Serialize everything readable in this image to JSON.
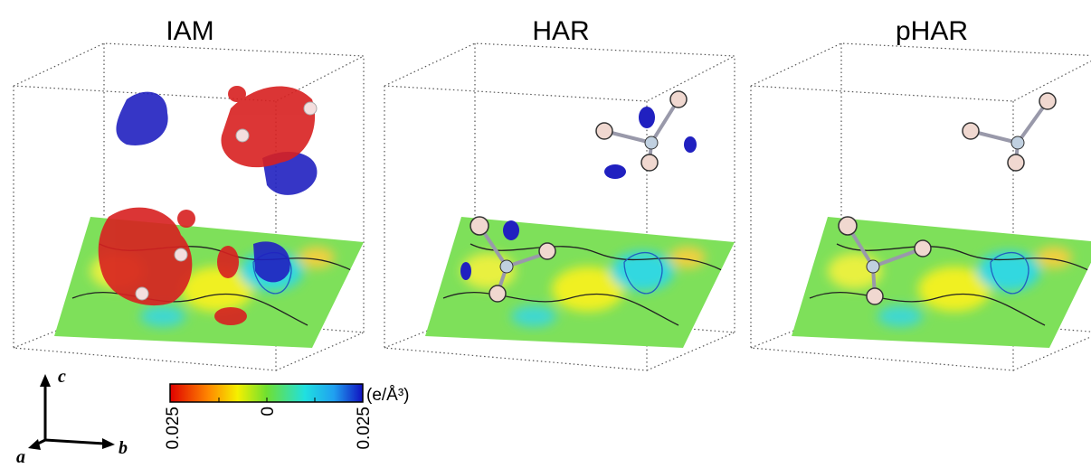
{
  "panels": [
    {
      "title": "IAM"
    },
    {
      "title": "HAR"
    },
    {
      "title": "pHAR"
    }
  ],
  "axes": {
    "a": "a",
    "b": "b",
    "c": "c"
  },
  "colorbar": {
    "unit": "(e/Å³)",
    "ticks": [
      "0.025",
      "0",
      "0.025"
    ]
  }
}
